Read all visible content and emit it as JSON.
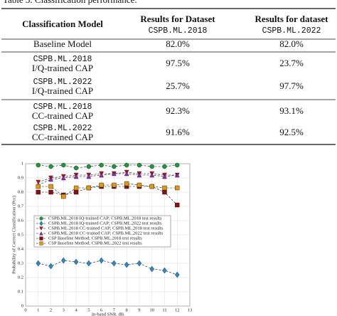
{
  "table": {
    "caption": "Table 3. Classification performance.",
    "header": [
      [
        "Classification Model"
      ],
      [
        "Results for Dataset",
        "CSPB.ML.2018"
      ],
      [
        "Results for dataset",
        "CSPB.ML.2022"
      ]
    ],
    "rows": [
      [
        [
          "Baseline Model"
        ],
        "82.0%",
        "82.0%"
      ],
      [
        [
          "CSPB.ML.2018",
          "I/Q-trained CAP"
        ],
        "97.5%",
        "23.7%"
      ],
      [
        [
          "CSPB.ML.2022",
          "I/Q-trained CAP"
        ],
        "25.7%",
        "97.7%"
      ],
      [
        [
          "CSPB.ML.2018",
          "CC-trained CAP"
        ],
        "92.3%",
        "93.1%"
      ],
      [
        [
          "CSPB.ML.2022",
          "CC-trained CAP"
        ],
        "91.6%",
        "92.5%"
      ]
    ]
  },
  "chart_data": {
    "type": "line",
    "x_label": "In-band SNR, dB",
    "y_label": "Probability of Correct Classification (Pcc)",
    "x": [
      1,
      2,
      3,
      4,
      5,
      6,
      7,
      8,
      9,
      10,
      11,
      12
    ],
    "xlim": [
      0,
      13
    ],
    "xticks": [
      0,
      1,
      2,
      3,
      4,
      5,
      6,
      7,
      8,
      9,
      10,
      11,
      12,
      13
    ],
    "ylim": [
      0,
      1
    ],
    "yticks": [
      0,
      0.1,
      0.2,
      0.3,
      0.4,
      0.5,
      0.6,
      0.7,
      0.8,
      0.9,
      1
    ],
    "grid": true,
    "legend": "upper left",
    "series": [
      {
        "name": "CSPB.ML.2018 IQ-trained CAP; CSPB.ML.2018 test results",
        "color": "#1a9a3a",
        "marker": "circle",
        "values": [
          0.99,
          0.98,
          0.99,
          0.97,
          0.98,
          0.99,
          0.98,
          0.99,
          0.99,
          0.98,
          0.98,
          0.99
        ]
      },
      {
        "name": "CSPB.ML.2018 IQ-trained CAP; CSPB.ML.2022 test results",
        "color": "#2a8ad0",
        "marker": "diamond",
        "values": [
          0.3,
          0.28,
          0.32,
          0.31,
          0.3,
          0.32,
          0.3,
          0.29,
          0.3,
          0.26,
          0.25,
          0.22
        ]
      },
      {
        "name": "CSPB.ML.2018 CC-trained CAP; CSPB.ML.2018 test results",
        "color": "#c0141e",
        "marker": "tri-down",
        "values": [
          0.87,
          0.9,
          0.91,
          0.92,
          0.92,
          0.93,
          0.93,
          0.94,
          0.93,
          0.93,
          0.92,
          0.92
        ]
      },
      {
        "name": "CSPB.ML.2018 CC-trained CAP; CSPB.ML.2022 test results",
        "color": "#a020c0",
        "marker": "tri-up",
        "values": [
          0.85,
          0.89,
          0.9,
          0.91,
          0.91,
          0.92,
          0.93,
          0.93,
          0.92,
          0.92,
          0.91,
          0.92
        ]
      },
      {
        "name": "CSP Baseline Method; CSPB.ML.2018 test results",
        "color": "#8a1010",
        "marker": "square",
        "values": [
          0.8,
          0.8,
          0.78,
          0.8,
          0.83,
          0.84,
          0.84,
          0.84,
          0.84,
          0.84,
          0.8,
          0.71
        ]
      },
      {
        "name": "CSP Baseline Method; CSPB.ML.2022 test results",
        "color": "#e09a10",
        "marker": "square",
        "values": [
          0.84,
          0.84,
          0.77,
          0.83,
          0.83,
          0.85,
          0.85,
          0.86,
          0.85,
          0.84,
          0.83,
          0.83
        ]
      }
    ]
  }
}
